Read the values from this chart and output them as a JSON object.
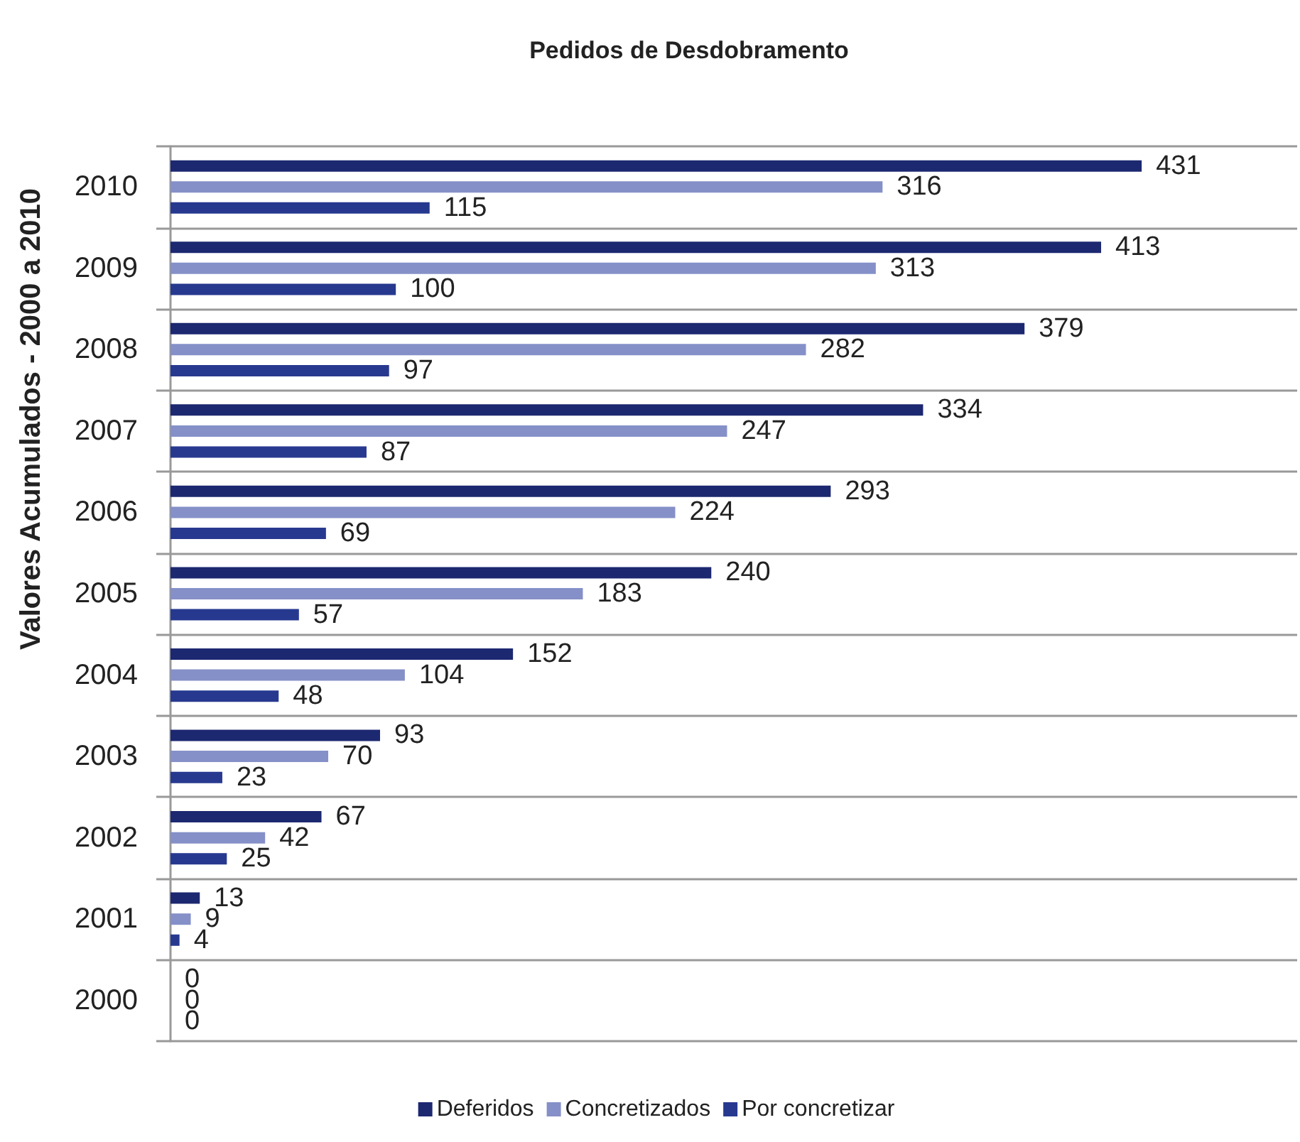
{
  "chart_data": {
    "type": "bar",
    "orientation": "horizontal",
    "title": "Pedidos de Desdobramento",
    "ylabel": "Valores Acumulados - 2000 a 2010",
    "categories": [
      "2010",
      "2009",
      "2008",
      "2007",
      "2006",
      "2005",
      "2004",
      "2003",
      "2002",
      "2001",
      "2000"
    ],
    "series": [
      {
        "name": "Deferidos",
        "color": "#1c2870",
        "values": [
          431,
          413,
          379,
          334,
          293,
          240,
          152,
          93,
          67,
          13,
          0
        ]
      },
      {
        "name": "Concretizados",
        "color": "#8590c8",
        "values": [
          316,
          313,
          282,
          247,
          224,
          183,
          104,
          70,
          42,
          9,
          0
        ]
      },
      {
        "name": "Por concretizar",
        "color": "#27398f",
        "values": [
          115,
          100,
          97,
          87,
          69,
          57,
          48,
          23,
          25,
          4,
          0
        ]
      }
    ],
    "data_labels": true,
    "grid": "y",
    "legend": "bottom",
    "tick_labels": "y"
  }
}
